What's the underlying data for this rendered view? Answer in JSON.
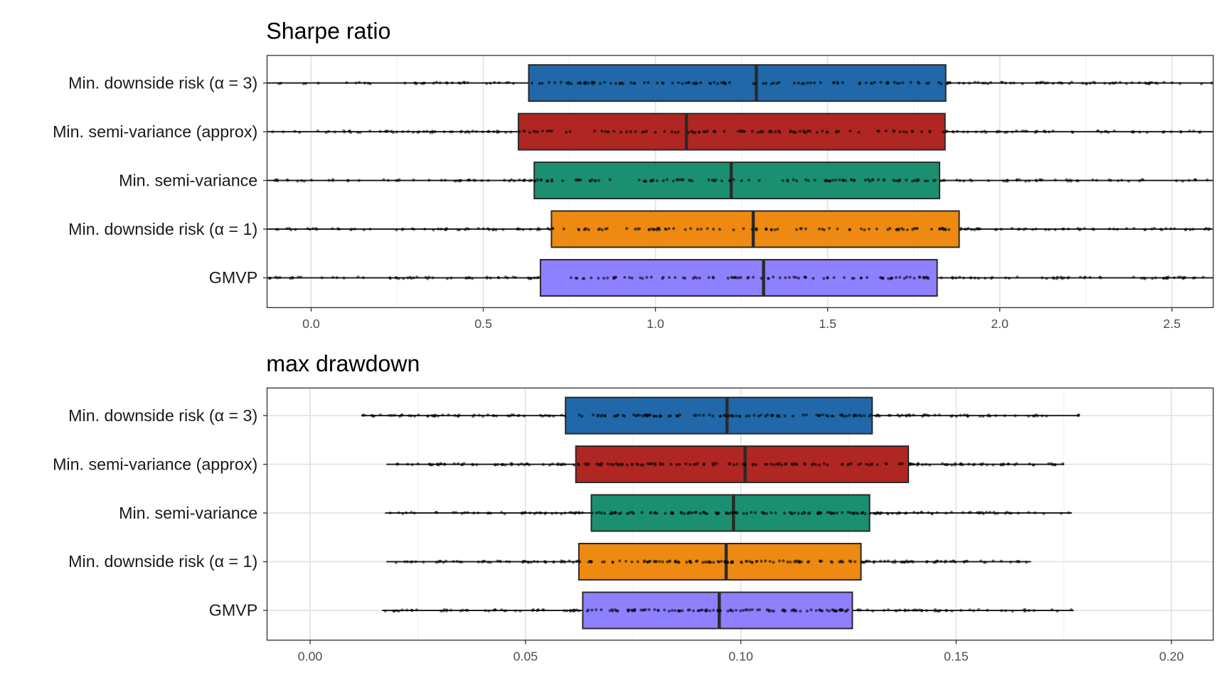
{
  "chart_data": [
    {
      "type": "boxplot",
      "title": "Sharpe ratio",
      "xlabel": "",
      "ylabel": "",
      "xlim": [
        -0.128,
        2.62
      ],
      "xticks": [
        "0.0",
        "0.5",
        "1.0",
        "1.5",
        "2.0",
        "2.5"
      ],
      "xtick_values": [
        0,
        0.5,
        1.0,
        1.5,
        2.0,
        2.5
      ],
      "grid": true,
      "categories": [
        "Min. downside risk (α = 3)",
        "Min. semi-variance (approx)",
        "Min. semi-variance",
        "Min. downside risk (α = 1)",
        "GMVP"
      ],
      "series": [
        {
          "category": "Min. downside risk (α = 3)",
          "color": "#2068A9",
          "whisker_low": -0.2,
          "q1": 0.632,
          "median": 1.293,
          "q3": 1.843,
          "whisker_high": 2.7
        },
        {
          "category": "Min. semi-variance (approx)",
          "color": "#B02622",
          "whisker_low": -0.2,
          "q1": 0.602,
          "median": 1.09,
          "q3": 1.841,
          "whisker_high": 2.7
        },
        {
          "category": "Min. semi-variance",
          "color": "#1B9070",
          "whisker_low": -0.2,
          "q1": 0.648,
          "median": 1.22,
          "q3": 1.825,
          "whisker_high": 2.7
        },
        {
          "category": "Min. downside risk (α = 1)",
          "color": "#EE8A12",
          "whisker_low": -0.2,
          "q1": 0.698,
          "median": 1.284,
          "q3": 1.882,
          "whisker_high": 2.7
        },
        {
          "category": "GMVP",
          "color": "#8F80FF",
          "whisker_low": -0.2,
          "q1": 0.666,
          "median": 1.314,
          "q3": 1.818,
          "whisker_high": 2.7
        }
      ]
    },
    {
      "type": "boxplot",
      "title": "max drawdown",
      "xlabel": "",
      "ylabel": "",
      "xlim": [
        -0.01,
        0.2097
      ],
      "xticks": [
        "0.00",
        "0.05",
        "0.10",
        "0.15",
        "0.20"
      ],
      "xtick_values": [
        0,
        0.05,
        0.1,
        0.15,
        0.2
      ],
      "grid": true,
      "categories": [
        "Min. downside risk (α = 3)",
        "Min. semi-variance (approx)",
        "Min. semi-variance",
        "Min. downside risk (α = 1)",
        "GMVP"
      ],
      "series": [
        {
          "category": "Min. downside risk (α = 3)",
          "color": "#2068A9",
          "whisker_low": 0.0119,
          "q1": 0.0593,
          "median": 0.0968,
          "q3": 0.1305,
          "whisker_high": 0.1786
        },
        {
          "category": "Min. semi-variance (approx)",
          "color": "#B02622",
          "whisker_low": 0.0177,
          "q1": 0.0617,
          "median": 0.101,
          "q3": 0.1389,
          "whisker_high": 0.1751
        },
        {
          "category": "Min. semi-variance",
          "color": "#1B9070",
          "whisker_low": 0.0174,
          "q1": 0.0653,
          "median": 0.0983,
          "q3": 0.1299,
          "whisker_high": 0.1769
        },
        {
          "category": "Min. downside risk (α = 1)",
          "color": "#EE8A12",
          "whisker_low": 0.0177,
          "q1": 0.0624,
          "median": 0.0966,
          "q3": 0.1279,
          "whisker_high": 0.1674
        },
        {
          "category": "GMVP",
          "color": "#8F80FF",
          "whisker_low": 0.0167,
          "q1": 0.0633,
          "median": 0.095,
          "q3": 0.1259,
          "whisker_high": 0.1773
        }
      ]
    }
  ]
}
